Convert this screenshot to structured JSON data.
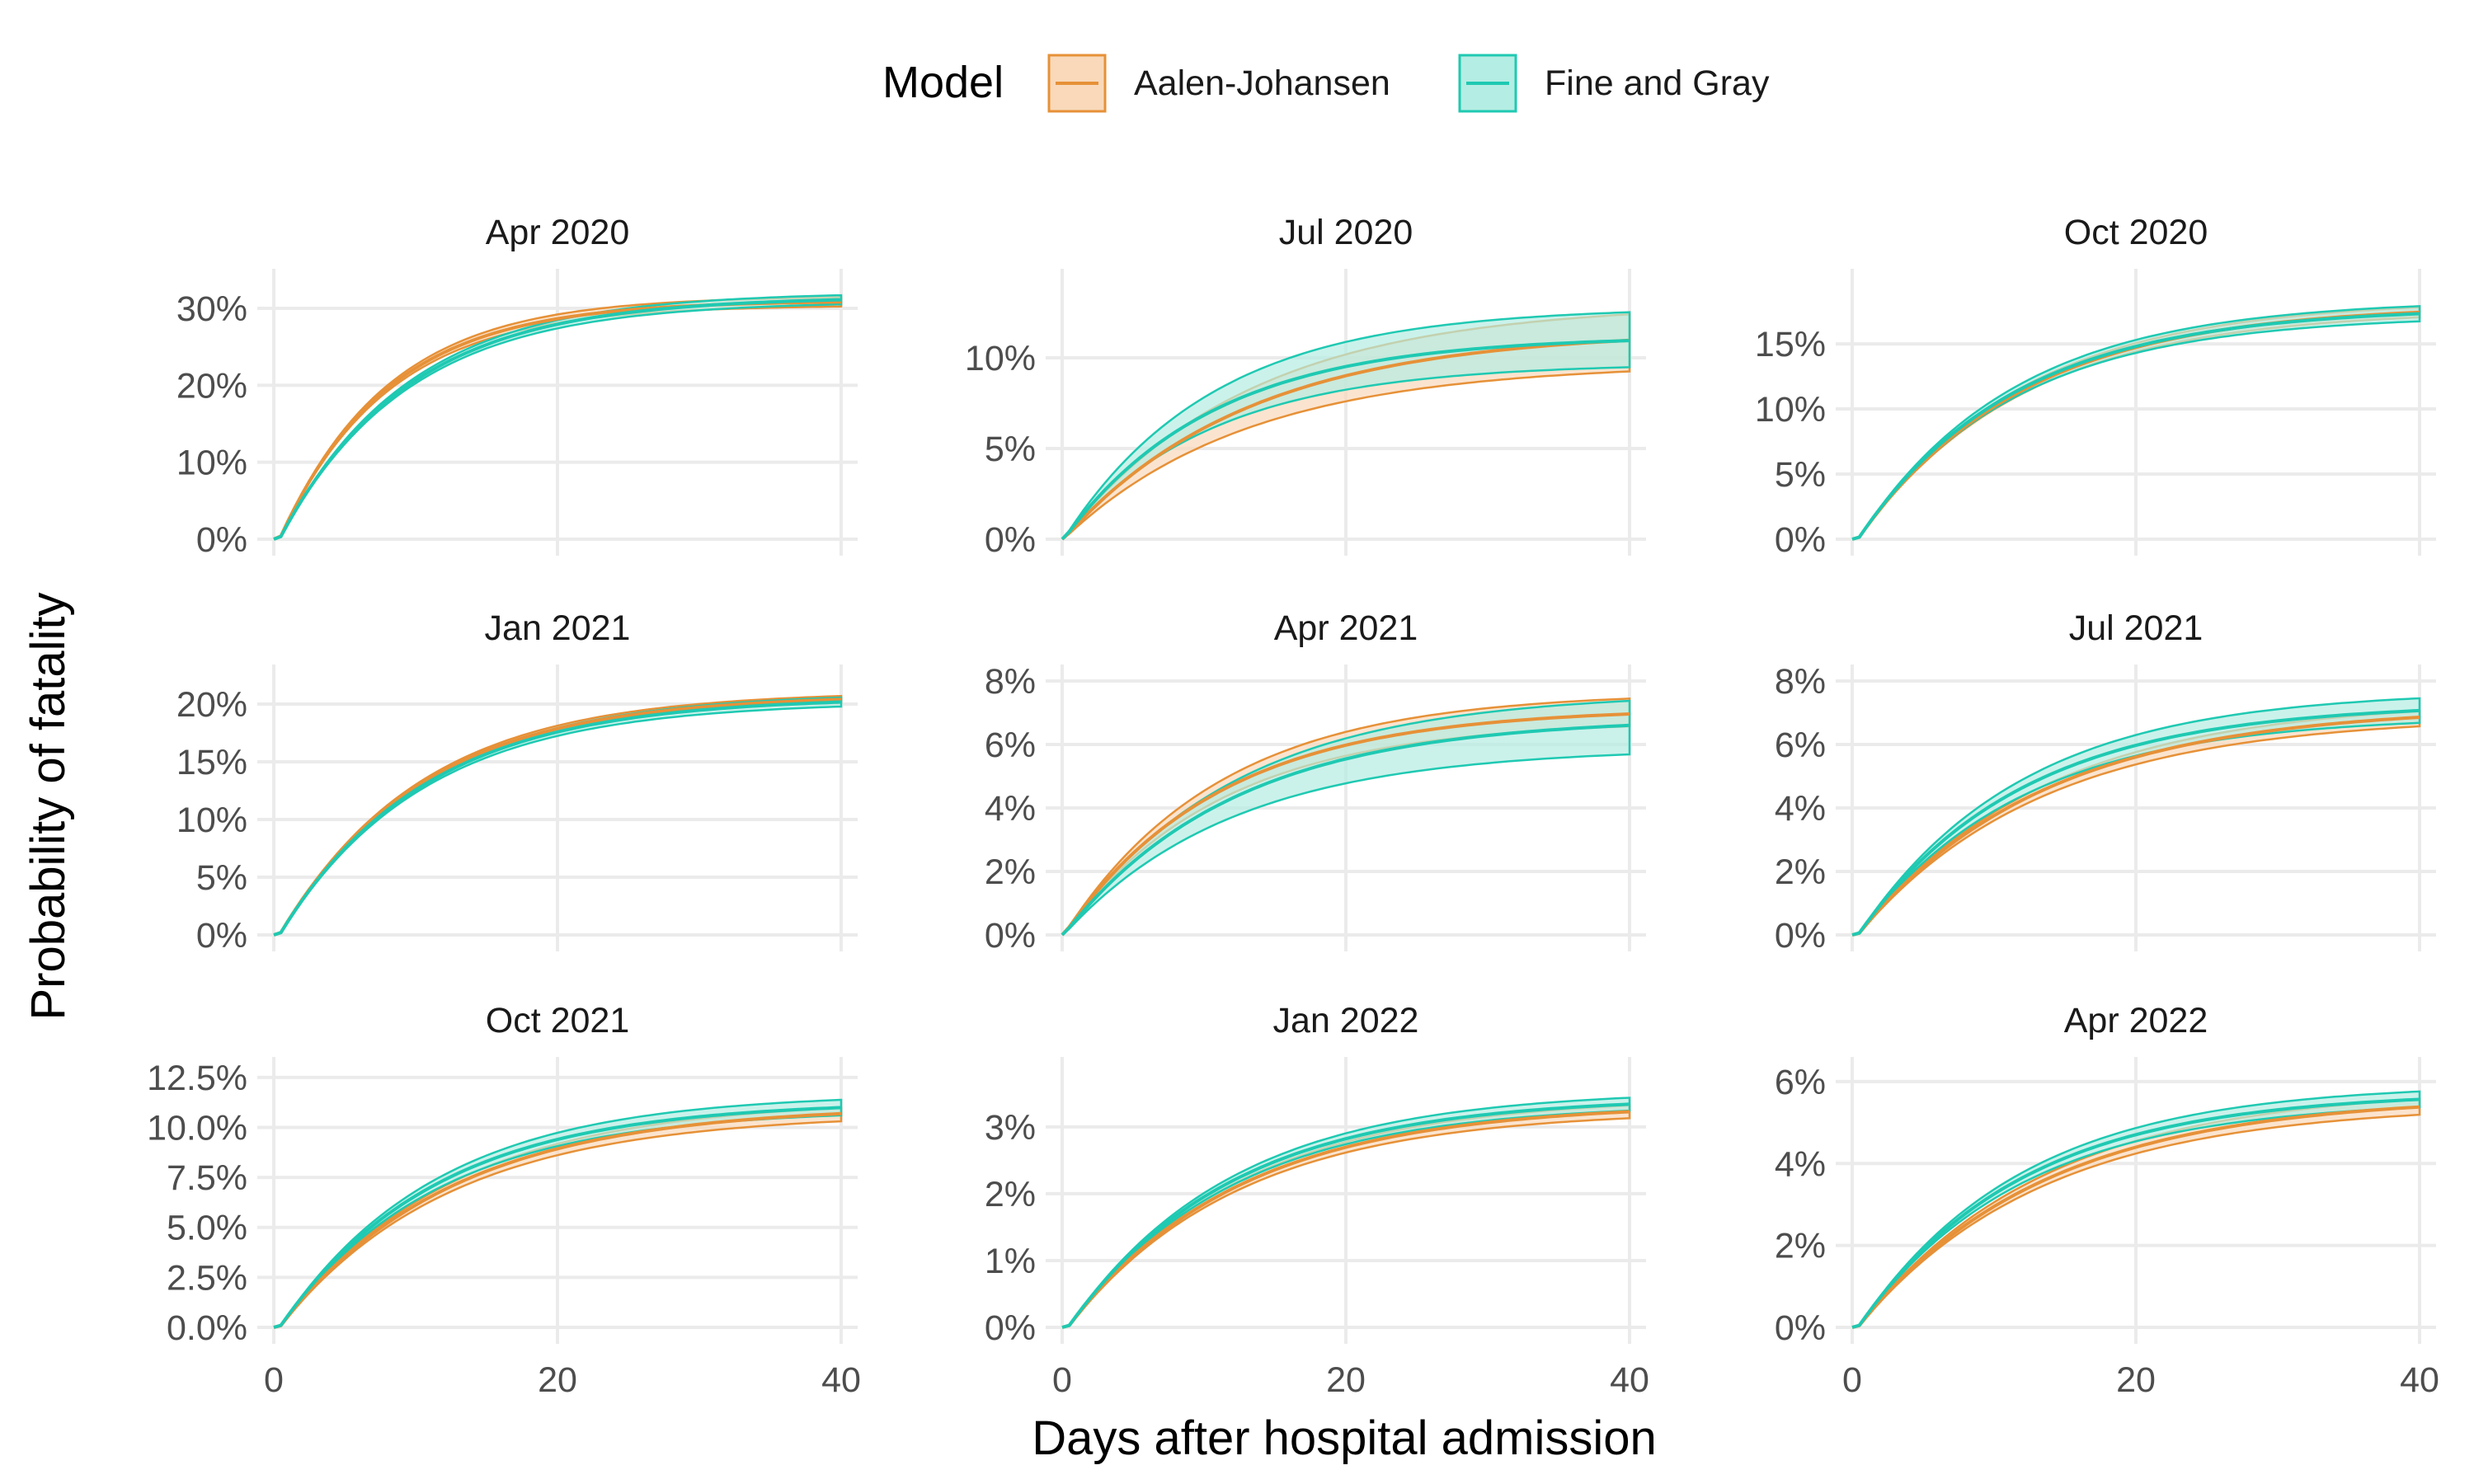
{
  "legend": {
    "title": "Model",
    "entries": [
      {
        "name": "Aalen-Johansen",
        "color": "#E69138",
        "fill": "#F9D9BA"
      },
      {
        "name": "Fine and Gray",
        "color": "#1FC9B2",
        "fill": "#B4EDE3"
      }
    ]
  },
  "axes": {
    "xlabel": "Days after hospital admission",
    "ylabel": "Probability of fatality"
  },
  "chart_data": {
    "type": "line",
    "x_ticks": [
      0,
      20,
      40
    ],
    "xlim": [
      0,
      40
    ],
    "grid": true,
    "legend_position": "top",
    "panels": [
      {
        "title": "Apr 2020",
        "ylim": [
          0,
          0.33
        ],
        "y_ticks": [
          0,
          0.1,
          0.2,
          0.3
        ],
        "y_tick_labels": [
          "0%",
          "10%",
          "20%",
          "30%"
        ],
        "series": [
          {
            "name": "Aalen-Johansen",
            "tau": 7.6,
            "onset": 0.4,
            "plateau": 0.31,
            "ci": [
              0.304,
              0.316
            ]
          },
          {
            "name": "Fine and Gray",
            "tau": 9.0,
            "onset": 0.4,
            "plateau": 0.315,
            "ci": [
              0.309,
              0.321
            ]
          }
        ]
      },
      {
        "title": "Jul 2020",
        "ylim": [
          0,
          0.14
        ],
        "y_ticks": [
          0,
          0.05,
          0.1
        ],
        "y_tick_labels": [
          "0%",
          "5%",
          "10%"
        ],
        "series": [
          {
            "name": "Aalen-Johansen",
            "tau": 13.0,
            "onset": 0.1,
            "plateau": 0.115,
            "ci": [
              0.097,
              0.13
            ]
          },
          {
            "name": "Fine and Gray",
            "tau": 10.5,
            "onset": 0.1,
            "plateau": 0.112,
            "ci": [
              0.097,
              0.128
            ]
          }
        ]
      },
      {
        "title": "Oct 2020",
        "ylim": [
          0,
          0.195
        ],
        "y_ticks": [
          0,
          0.05,
          0.1,
          0.15
        ],
        "y_tick_labels": [
          "0%",
          "5%",
          "10%",
          "15%"
        ],
        "series": [
          {
            "name": "Aalen-Johansen",
            "tau": 11.5,
            "onset": 0.4,
            "plateau": 0.18,
            "ci": [
              0.176,
              0.184
            ]
          },
          {
            "name": "Fine and Gray",
            "tau": 11.0,
            "onset": 0.4,
            "plateau": 0.178,
            "ci": [
              0.172,
              0.184
            ]
          }
        ]
      },
      {
        "title": "Jan 2021",
        "ylim": [
          0,
          0.22
        ],
        "y_ticks": [
          0,
          0.05,
          0.1,
          0.15,
          0.2
        ],
        "y_tick_labels": [
          "0%",
          "5%",
          "10%",
          "15%",
          "20%"
        ],
        "series": [
          {
            "name": "Aalen-Johansen",
            "tau": 10.0,
            "onset": 0.4,
            "plateau": 0.208,
            "ci": [
              0.205,
              0.211
            ]
          },
          {
            "name": "Fine and Gray",
            "tau": 10.2,
            "onset": 0.4,
            "plateau": 0.206,
            "ci": [
              0.202,
              0.21
            ]
          }
        ]
      },
      {
        "title": "Apr 2021",
        "ylim": [
          0,
          0.08
        ],
        "y_ticks": [
          0,
          0.02,
          0.04,
          0.06,
          0.08
        ],
        "y_tick_labels": [
          "0%",
          "2%",
          "4%",
          "6%",
          "8%"
        ],
        "series": [
          {
            "name": "Aalen-Johansen",
            "tau": 11.0,
            "onset": 0.1,
            "plateau": 0.0715,
            "ci": [
              0.0675,
              0.0765
            ]
          },
          {
            "name": "Fine and Gray",
            "tau": 12.0,
            "onset": 0.1,
            "plateau": 0.0685,
            "ci": [
              0.059,
              0.0765
            ]
          }
        ]
      },
      {
        "title": "Jul 2021",
        "ylim": [
          0,
          0.08
        ],
        "y_ticks": [
          0,
          0.02,
          0.04,
          0.06,
          0.08
        ],
        "y_tick_labels": [
          "0%",
          "2%",
          "4%",
          "6%",
          "8%"
        ],
        "series": [
          {
            "name": "Aalen-Johansen",
            "tau": 13.0,
            "onset": 0.4,
            "plateau": 0.072,
            "ci": [
              0.069,
              0.074
            ]
          },
          {
            "name": "Fine and Gray",
            "tau": 11.5,
            "onset": 0.4,
            "plateau": 0.073,
            "ci": [
              0.069,
              0.077
            ]
          }
        ]
      },
      {
        "title": "Oct 2021",
        "ylim": [
          0,
          0.127
        ],
        "y_ticks": [
          0,
          0.025,
          0.05,
          0.075,
          0.1,
          0.125
        ],
        "y_tick_labels": [
          "0.0%",
          "2.5%",
          "5.0%",
          "7.5%",
          "10.0%",
          "12.5%"
        ],
        "series": [
          {
            "name": "Aalen-Johansen",
            "tau": 12.0,
            "onset": 0.4,
            "plateau": 0.111,
            "ci": [
              0.107,
              0.114
            ]
          },
          {
            "name": "Fine and Gray",
            "tau": 11.0,
            "onset": 0.4,
            "plateau": 0.113,
            "ci": [
              0.109,
              0.117
            ]
          }
        ]
      },
      {
        "title": "Jan 2022",
        "ylim": [
          0,
          0.038
        ],
        "y_ticks": [
          0,
          0.01,
          0.02,
          0.03
        ],
        "y_tick_labels": [
          "0%",
          "1%",
          "2%",
          "3%"
        ],
        "series": [
          {
            "name": "Aalen-Johansen",
            "tau": 12.0,
            "onset": 0.4,
            "plateau": 0.0335,
            "ci": [
              0.0325,
              0.0345
            ]
          },
          {
            "name": "Fine and Gray",
            "tau": 11.5,
            "onset": 0.4,
            "plateau": 0.0345,
            "ci": [
              0.0335,
              0.0355
            ]
          }
        ]
      },
      {
        "title": "Apr 2022",
        "ylim": [
          0,
          0.062
        ],
        "y_ticks": [
          0,
          0.02,
          0.04,
          0.06
        ],
        "y_tick_labels": [
          "0%",
          "2%",
          "4%",
          "6%"
        ],
        "series": [
          {
            "name": "Aalen-Johansen",
            "tau": 13.0,
            "onset": 0.4,
            "plateau": 0.0565,
            "ci": [
              0.0545,
              0.0585
            ]
          },
          {
            "name": "Fine and Gray",
            "tau": 11.5,
            "onset": 0.4,
            "plateau": 0.0575,
            "ci": [
              0.0555,
              0.0595
            ]
          }
        ]
      }
    ]
  }
}
